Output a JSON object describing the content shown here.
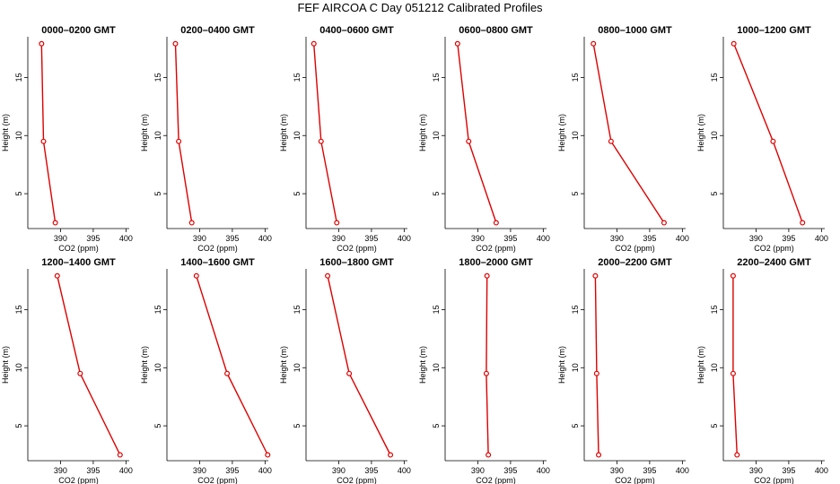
{
  "title": "FEF AIRCOA C  Day 051212  Calibrated Profiles",
  "colors": {
    "line": "#dd0000",
    "marker": "#dd0000",
    "axis": "#000000"
  },
  "chart_data": {
    "type": "line",
    "xlabel": "CO2 (ppm)",
    "ylabel": "Height (m)",
    "xlim": [
      385,
      400.5
    ],
    "ylim": [
      2,
      18.5
    ],
    "xticks": [
      390,
      395,
      400
    ],
    "yticks": [
      5,
      10,
      15
    ],
    "heights": [
      17.9,
      9.5,
      2.5
    ],
    "panels": [
      {
        "title": "0000–0200 GMT",
        "co2": [
          387.1,
          387.4,
          389.2
        ]
      },
      {
        "title": "0200–0400 GMT",
        "co2": [
          386.3,
          386.8,
          388.8
        ]
      },
      {
        "title": "0400–0600 GMT",
        "co2": [
          386.2,
          387.3,
          389.7
        ]
      },
      {
        "title": "0600–0800 GMT",
        "co2": [
          386.9,
          388.6,
          392.8
        ]
      },
      {
        "title": "0800–1000 GMT",
        "co2": [
          386.4,
          389.1,
          397.2
        ]
      },
      {
        "title": "1000–1200 GMT",
        "co2": [
          386.6,
          392.6,
          397.1
        ]
      },
      {
        "title": "1200–1400 GMT",
        "co2": [
          389.5,
          393.0,
          399.1
        ]
      },
      {
        "title": "1400–1600 GMT",
        "co2": [
          389.5,
          394.2,
          400.4
        ]
      },
      {
        "title": "1600–1800 GMT",
        "co2": [
          388.3,
          391.6,
          397.9
        ]
      },
      {
        "title": "1800–2000 GMT",
        "co2": [
          391.4,
          391.3,
          391.6
        ]
      },
      {
        "title": "2000–2200 GMT",
        "co2": [
          386.7,
          386.9,
          387.2
        ]
      },
      {
        "title": "2200–2400 GMT",
        "co2": [
          386.5,
          386.5,
          387.1
        ]
      }
    ]
  }
}
